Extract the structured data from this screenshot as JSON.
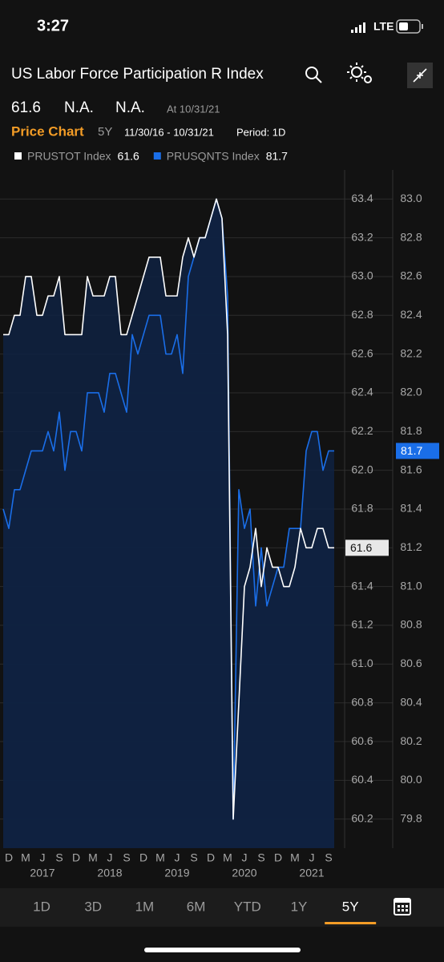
{
  "status_bar": {
    "time": "3:27",
    "network": "LTE"
  },
  "header": {
    "title": "US Labor Force Participation R Index",
    "change": "N.A.",
    "change_percent": "N.A.",
    "as_of": "At 10/31/21"
  },
  "chart_controls": {
    "chart_name": "Price Chart",
    "range": "5Y",
    "date_range": "11/30/16 - 10/31/21",
    "period": "Period: 1D"
  },
  "chart_data": {
    "type": "line",
    "categories": [
      null,
      "D",
      null,
      null,
      "M",
      null,
      null,
      "J",
      null,
      null,
      "S",
      null,
      null,
      "D",
      null,
      null,
      "M",
      null,
      null,
      "J",
      null,
      null,
      "S",
      null,
      null,
      "D",
      null,
      null,
      "M",
      null,
      null,
      "J",
      null,
      null,
      "S",
      null,
      null,
      "D",
      null,
      null,
      "M",
      null,
      null,
      "J",
      null,
      null,
      "S",
      null,
      null,
      "D",
      null,
      null,
      "M",
      null,
      null,
      "J",
      null,
      null,
      "S",
      null
    ],
    "year_labels": [
      null,
      null,
      null,
      null,
      null,
      null,
      null,
      "2017",
      null,
      null,
      null,
      null,
      null,
      null,
      null,
      null,
      null,
      null,
      null,
      "2018",
      null,
      null,
      null,
      null,
      null,
      null,
      null,
      null,
      null,
      null,
      null,
      "2019",
      null,
      null,
      null,
      null,
      null,
      null,
      null,
      null,
      null,
      null,
      null,
      "2020",
      null,
      null,
      null,
      null,
      null,
      null,
      null,
      null,
      null,
      null,
      null,
      "2021",
      null,
      null,
      null,
      null
    ],
    "series": [
      {
        "name": "PRUSTOT Index",
        "color": "#ffffff",
        "values": [
          62.7,
          62.7,
          62.8,
          62.8,
          63.0,
          63.0,
          62.8,
          62.8,
          62.9,
          62.9,
          63.0,
          62.7,
          62.7,
          62.7,
          62.7,
          63.0,
          62.9,
          62.9,
          62.9,
          63.0,
          63.0,
          62.7,
          62.7,
          62.8,
          62.9,
          63.0,
          63.1,
          63.1,
          63.1,
          62.9,
          62.9,
          62.9,
          63.1,
          63.2,
          63.1,
          63.2,
          63.2,
          63.3,
          63.4,
          63.3,
          62.7,
          60.2,
          60.8,
          61.4,
          61.5,
          61.7,
          61.4,
          61.6,
          61.5,
          61.5,
          61.4,
          61.4,
          61.5,
          61.7,
          61.6,
          61.6,
          61.7,
          61.7,
          61.6,
          61.6
        ]
      },
      {
        "name": "PRUSQNTS Index",
        "color": "#1a6ee8",
        "axis": "y2",
        "values": [
          81.4,
          81.3,
          81.5,
          81.5,
          81.6,
          81.7,
          81.7,
          81.7,
          81.8,
          81.7,
          81.9,
          81.6,
          81.8,
          81.8,
          81.7,
          82.0,
          82.0,
          82.0,
          81.9,
          82.1,
          82.1,
          82.0,
          81.9,
          82.3,
          82.2,
          82.3,
          82.4,
          82.4,
          82.4,
          82.2,
          82.2,
          82.3,
          82.1,
          82.6,
          82.7,
          82.8,
          82.8,
          82.9,
          83.0,
          82.9,
          82.5,
          79.8,
          81.5,
          81.3,
          81.4,
          80.9,
          81.2,
          80.9,
          81.0,
          81.1,
          81.1,
          81.3,
          81.3,
          81.3,
          81.7,
          81.8,
          81.8,
          81.6,
          81.7,
          81.7
        ]
      }
    ],
    "ylim": [
      60.05,
      63.55
    ],
    "yticks": [
      60.2,
      60.4,
      60.6,
      60.8,
      {
        "value": 61,
        "label": "61.0"
      },
      61.2,
      61.4,
      61.6,
      61.8,
      {
        "value": 62,
        "label": "62.0"
      },
      62.2,
      62.4,
      62.6,
      62.8,
      {
        "value": 63,
        "label": "63.0"
      },
      63.2,
      63.4
    ],
    "y2lim": [
      79.65,
      83.15
    ],
    "y2ticks": [
      79.8,
      {
        "value": 80,
        "label": "80.0"
      },
      80.2,
      80.4,
      80.6,
      80.8,
      {
        "value": 81,
        "label": "81.0"
      },
      81.2,
      81.4,
      81.6,
      81.8,
      {
        "value": 82,
        "label": "82.0"
      },
      82.2,
      82.4,
      82.6,
      82.8,
      {
        "value": 83,
        "label": "83.0"
      }
    ],
    "grid": true,
    "area_color": "#0f2242"
  },
  "range_tabs": {
    "items": [
      "1D",
      "3D",
      "1M",
      "6M",
      "YTD",
      "1Y",
      "5Y"
    ],
    "selected": 6,
    "accent": "#f39c26"
  }
}
